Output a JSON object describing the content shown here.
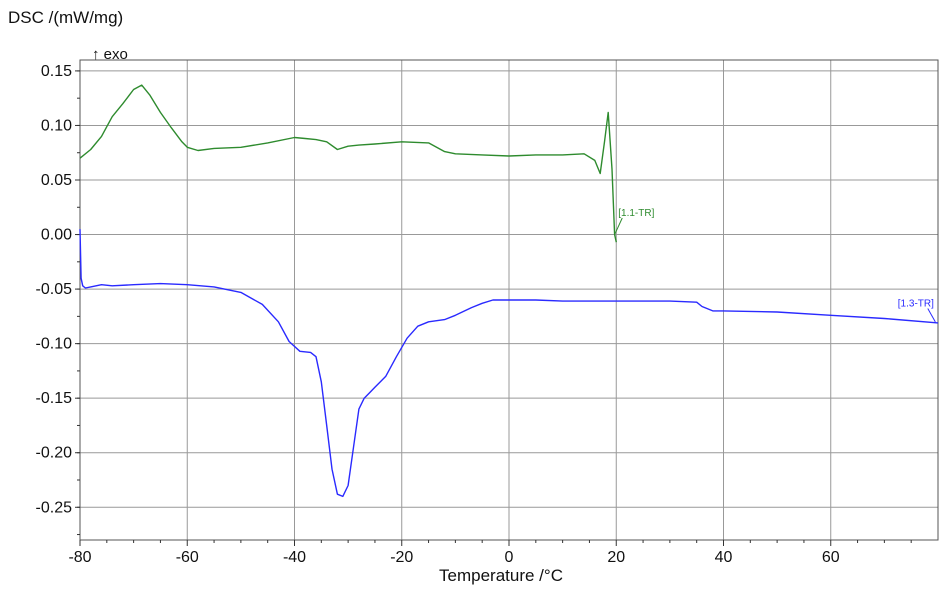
{
  "chart_data": {
    "type": "line",
    "ylabel": "DSC /(mW/mg)",
    "xlabel": "Temperature /°C",
    "annotation": "↑ exo",
    "xlim": [
      -80,
      80
    ],
    "ylim": [
      -0.28,
      0.16
    ],
    "x_ticks": [
      -80,
      -60,
      -40,
      -20,
      0,
      20,
      40,
      60
    ],
    "x_tick_labels": [
      "-80",
      "-60",
      "-40",
      "-20",
      "0",
      "20",
      "40",
      "60"
    ],
    "y_ticks": [
      0.15,
      0.1,
      0.05,
      0.0,
      -0.05,
      -0.1,
      -0.15,
      -0.2,
      -0.25
    ],
    "y_tick_labels": [
      "0.15",
      "0.10",
      "0.05",
      "0.00",
      "-0.05",
      "-0.10",
      "-0.15",
      "-0.20",
      "-0.25"
    ],
    "grid": true,
    "series": [
      {
        "name": "[1.1-TR]",
        "color": "#2e8b2e",
        "x": [
          -80,
          -78,
          -76,
          -74,
          -72,
          -70,
          -68.5,
          -67,
          -65,
          -63,
          -61,
          -60,
          -58,
          -55,
          -50,
          -45,
          -40,
          -38,
          -36,
          -34,
          -32,
          -30,
          -28,
          -25,
          -20,
          -15,
          -12,
          -10,
          -5,
          0,
          5,
          10,
          14,
          16,
          17,
          17.8,
          18.5,
          19.2,
          19.7,
          20
        ],
        "y": [
          0.07,
          0.078,
          0.09,
          0.108,
          0.12,
          0.133,
          0.137,
          0.128,
          0.112,
          0.098,
          0.085,
          0.08,
          0.077,
          0.079,
          0.08,
          0.084,
          0.089,
          0.088,
          0.087,
          0.085,
          0.078,
          0.081,
          0.082,
          0.083,
          0.085,
          0.084,
          0.076,
          0.074,
          0.073,
          0.072,
          0.073,
          0.073,
          0.074,
          0.068,
          0.056,
          0.085,
          0.112,
          0.06,
          0.0,
          -0.007
        ]
      },
      {
        "name": "[1.3-TR]",
        "color": "#2a2aff",
        "x": [
          -80,
          -79.8,
          -79.5,
          -79,
          -78,
          -76,
          -74,
          -70,
          -65,
          -60,
          -55,
          -50,
          -46,
          -43,
          -41,
          -39,
          -37,
          -36,
          -35,
          -34,
          -33,
          -32,
          -31,
          -30,
          -29,
          -28,
          -27,
          -26,
          -25,
          -23,
          -21,
          -19,
          -17,
          -15,
          -12,
          -10,
          -7,
          -5,
          -3,
          0,
          5,
          10,
          20,
          30,
          35,
          36,
          38,
          40,
          50,
          60,
          70,
          80
        ],
        "y": [
          0.005,
          -0.04,
          -0.047,
          -0.049,
          -0.048,
          -0.046,
          -0.047,
          -0.046,
          -0.045,
          -0.046,
          -0.048,
          -0.053,
          -0.064,
          -0.08,
          -0.098,
          -0.107,
          -0.108,
          -0.112,
          -0.135,
          -0.175,
          -0.215,
          -0.238,
          -0.24,
          -0.23,
          -0.195,
          -0.16,
          -0.15,
          -0.145,
          -0.14,
          -0.13,
          -0.112,
          -0.095,
          -0.084,
          -0.08,
          -0.078,
          -0.074,
          -0.067,
          -0.063,
          -0.06,
          -0.06,
          -0.06,
          -0.061,
          -0.061,
          -0.061,
          -0.062,
          -0.066,
          -0.07,
          -0.07,
          -0.071,
          -0.074,
          -0.077,
          -0.081
        ]
      }
    ]
  }
}
